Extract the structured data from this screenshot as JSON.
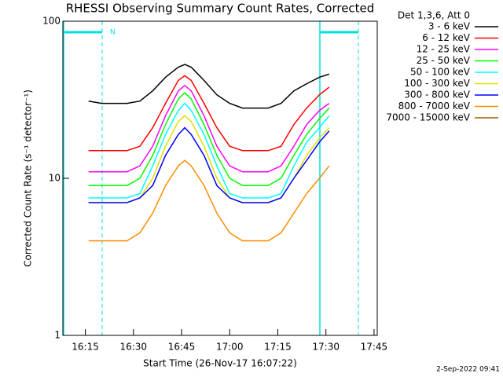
{
  "chart_data": {
    "type": "line",
    "title": "RHESSI Observing Summary Count Rates, Corrected",
    "x_label": "Start Time (26-Nov-17 16:07:22)",
    "y_label": "Corrected Count Rate (s⁻¹ detector⁻¹)",
    "legend_title": "Det 1,3,6, Att 0",
    "night_label": "N",
    "footer": "2-Sep-2022 09:41",
    "log_y": true,
    "xlim": [
      8,
      106
    ],
    "ylim": [
      1,
      100
    ],
    "yticks": [
      1,
      10,
      100
    ],
    "xticks": [
      {
        "value": 15,
        "label": "16:15"
      },
      {
        "value": 30,
        "label": "16:30"
      },
      {
        "value": 45,
        "label": "16:45"
      },
      {
        "value": 60,
        "label": "17:00"
      },
      {
        "value": 75,
        "label": "17:15"
      },
      {
        "value": 90,
        "label": "17:30"
      },
      {
        "value": 105,
        "label": "17:45"
      }
    ],
    "x": [
      16,
      20,
      24,
      28,
      32,
      36,
      40,
      44,
      46,
      48,
      52,
      56,
      60,
      64,
      68,
      72,
      76,
      80,
      84,
      88,
      91
    ],
    "series": [
      {
        "name": "3 - 6 keV",
        "color": "#000000",
        "values": [
          31,
          30,
          30,
          30,
          31,
          36,
          44,
          51,
          53,
          51,
          42,
          34,
          30,
          28,
          28,
          28,
          30,
          36,
          40,
          44,
          46
        ]
      },
      {
        "name": "6 - 12 keV",
        "color": "#ff0000",
        "values": [
          15,
          15,
          15,
          15,
          16,
          21,
          30,
          42,
          45,
          42,
          30,
          21,
          16,
          15,
          15,
          15,
          16,
          22,
          28,
          34,
          38
        ]
      },
      {
        "name": "12 - 25 keV",
        "color": "#ff00ff",
        "values": [
          11,
          11,
          11,
          11,
          12,
          16,
          25,
          36,
          39,
          36,
          25,
          16,
          12,
          11,
          11,
          11,
          12,
          16,
          22,
          27,
          30
        ]
      },
      {
        "name": "25 - 50 keV",
        "color": "#00ff00",
        "values": [
          9,
          9,
          9,
          9,
          10,
          14,
          22,
          32,
          35,
          32,
          22,
          14,
          10,
          9,
          9,
          9,
          10,
          14,
          19,
          24,
          28
        ]
      },
      {
        "name": "50 - 100 keV",
        "color": "#00ffff",
        "values": [
          7.5,
          7.5,
          7.5,
          7.5,
          8,
          12,
          19,
          27,
          30,
          27,
          19,
          12,
          8,
          7.5,
          7.5,
          7.5,
          8,
          12,
          17,
          21,
          25
        ]
      },
      {
        "name": "100 - 300 keV",
        "color": "#e0e000",
        "values": [
          7,
          7,
          7,
          7,
          7.5,
          10,
          16,
          23,
          25,
          23,
          16,
          10,
          7.5,
          7,
          7,
          7,
          7.5,
          10,
          14,
          18,
          21
        ]
      },
      {
        "name": "300 - 800 keV",
        "color": "#0000ff",
        "values": [
          7,
          7,
          7,
          7,
          7.5,
          9,
          14,
          19,
          21,
          19,
          14,
          9,
          7.5,
          7,
          7,
          7,
          7.5,
          10,
          13,
          17,
          20
        ]
      },
      {
        "name": "800 - 7000 keV",
        "color": "#ff8c00",
        "values": [
          4,
          4,
          4,
          4,
          4.5,
          6,
          9,
          12,
          13,
          12,
          9,
          6,
          4.5,
          4,
          4,
          4,
          4.5,
          6,
          8,
          10,
          12
        ]
      },
      {
        "name": "7000 - 15000 keV",
        "color": "#a06000",
        "values": [
          null,
          null,
          null,
          null,
          null,
          null,
          null,
          null,
          null,
          null,
          null,
          null,
          null,
          null,
          null,
          null,
          null,
          null,
          null,
          null,
          null
        ]
      }
    ]
  }
}
